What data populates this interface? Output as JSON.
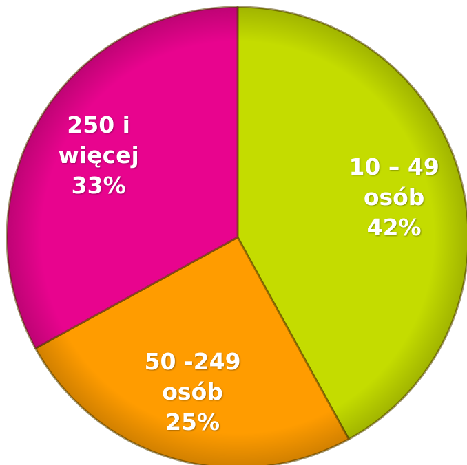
{
  "chart_data": {
    "type": "pie",
    "categories": [
      "10 – 49 osób",
      "50 -249 osób",
      "250 i więcej"
    ],
    "values": [
      42,
      25,
      33
    ],
    "value_labels": [
      "42%",
      "25%",
      "33%"
    ],
    "colors": [
      "#c4dc00",
      "#ff9c00",
      "#e8048e"
    ]
  }
}
